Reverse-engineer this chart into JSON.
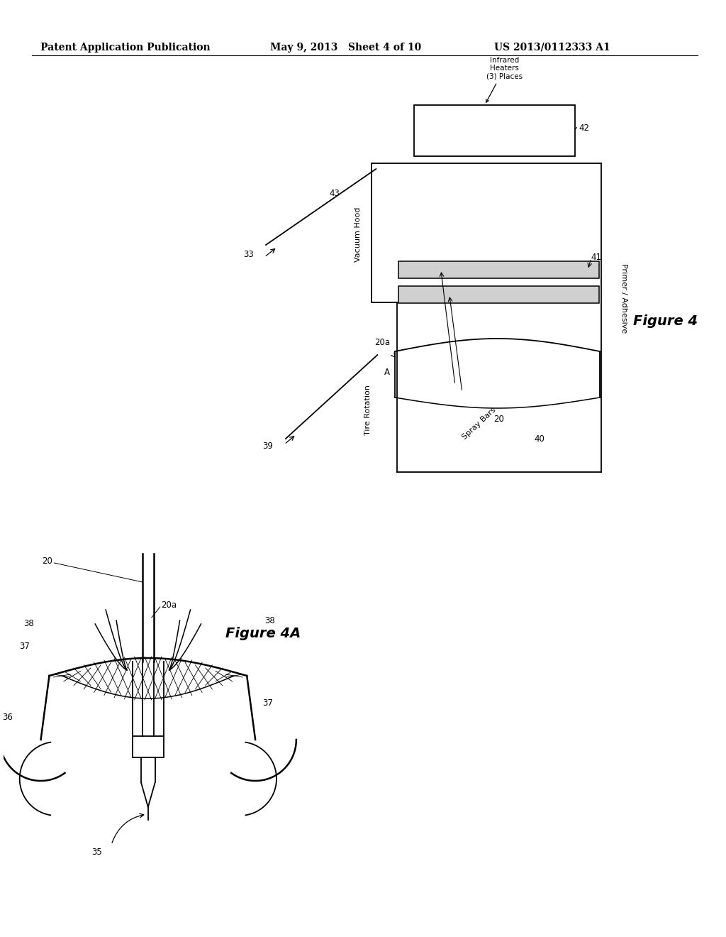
{
  "bg_color": "#ffffff",
  "header_left": "Patent Application Publication",
  "header_mid": "May 9, 2013   Sheet 4 of 10",
  "header_right": "US 2013/0112333 A1",
  "fig4_label": "Figure 4",
  "fig4a_label": "Figure 4A",
  "label_fontsize": 8.5,
  "ref_fontsize": 8.5,
  "header_fontsize": 10,
  "fig_label_fontsize": 14
}
